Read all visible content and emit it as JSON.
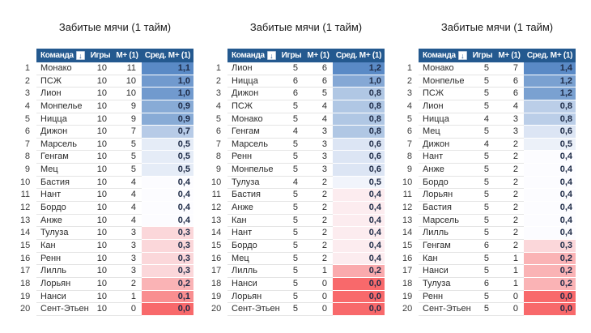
{
  "headers": {
    "team": "Команда",
    "games": "Игры",
    "m1": "М+ (1)",
    "avg": "Сред. М+ (1)"
  },
  "sort_icon": {
    "name": "sort-descending-icon",
    "glyph": "↓"
  },
  "colors": {
    "header_bg": "#24598F",
    "header_text": "#ffffff",
    "scale_max_blue": "#5A8AC6",
    "scale_mid_white": "#FCFCFF",
    "scale_min_red": "#F8696B",
    "row_border": "#e4e4e4"
  },
  "chart_data": [
    {
      "type": "table",
      "title": "Забитые мячи (1 тайм)",
      "columns": [
        "Команда",
        "Игры",
        "М+ (1)",
        "Сред. М+ (1)"
      ],
      "rows": [
        {
          "rank": 1,
          "team": "Монако",
          "games": 10,
          "m1": 11,
          "avg": "1,1"
        },
        {
          "rank": 2,
          "team": "ПСЖ",
          "games": 10,
          "m1": 10,
          "avg": "1,0"
        },
        {
          "rank": 3,
          "team": "Лион",
          "games": 10,
          "m1": 10,
          "avg": "1,0"
        },
        {
          "rank": 4,
          "team": "Монпелье",
          "games": 10,
          "m1": 9,
          "avg": "0,9"
        },
        {
          "rank": 5,
          "team": "Ницца",
          "games": 10,
          "m1": 9,
          "avg": "0,9"
        },
        {
          "rank": 6,
          "team": "Дижон",
          "games": 10,
          "m1": 7,
          "avg": "0,7"
        },
        {
          "rank": 7,
          "team": "Марсель",
          "games": 10,
          "m1": 5,
          "avg": "0,5"
        },
        {
          "rank": 8,
          "team": "Генгам",
          "games": 10,
          "m1": 5,
          "avg": "0,5"
        },
        {
          "rank": 9,
          "team": "Мец",
          "games": 10,
          "m1": 5,
          "avg": "0,5"
        },
        {
          "rank": 10,
          "team": "Бастия",
          "games": 10,
          "m1": 4,
          "avg": "0,4"
        },
        {
          "rank": 11,
          "team": "Нант",
          "games": 10,
          "m1": 4,
          "avg": "0,4"
        },
        {
          "rank": 12,
          "team": "Бордо",
          "games": 10,
          "m1": 4,
          "avg": "0,4"
        },
        {
          "rank": 13,
          "team": "Анже",
          "games": 10,
          "m1": 4,
          "avg": "0,4"
        },
        {
          "rank": 14,
          "team": "Тулуза",
          "games": 10,
          "m1": 3,
          "avg": "0,3"
        },
        {
          "rank": 15,
          "team": "Кан",
          "games": 10,
          "m1": 3,
          "avg": "0,3"
        },
        {
          "rank": 16,
          "team": "Ренн",
          "games": 10,
          "m1": 3,
          "avg": "0,3"
        },
        {
          "rank": 17,
          "team": "Лилль",
          "games": 10,
          "m1": 3,
          "avg": "0,3"
        },
        {
          "rank": 18,
          "team": "Лорьян",
          "games": 10,
          "m1": 2,
          "avg": "0,2"
        },
        {
          "rank": 19,
          "team": "Нанси",
          "games": 10,
          "m1": 1,
          "avg": "0,1"
        },
        {
          "rank": 20,
          "team": "Сент-Этьен",
          "games": 10,
          "m1": 0,
          "avg": "0,0"
        }
      ]
    },
    {
      "type": "table",
      "title": "Забитые мячи (1 тайм)",
      "columns": [
        "Команда",
        "Игры",
        "М+ (1)",
        "Сред. М+ (1)"
      ],
      "rows": [
        {
          "rank": 1,
          "team": "Лион",
          "games": 5,
          "m1": 6,
          "avg": "1,2"
        },
        {
          "rank": 2,
          "team": "Ницца",
          "games": 6,
          "m1": 6,
          "avg": "1,0"
        },
        {
          "rank": 3,
          "team": "Дижон",
          "games": 6,
          "m1": 5,
          "avg": "0,8"
        },
        {
          "rank": 4,
          "team": "ПСЖ",
          "games": 5,
          "m1": 4,
          "avg": "0,8"
        },
        {
          "rank": 5,
          "team": "Монако",
          "games": 5,
          "m1": 4,
          "avg": "0,8"
        },
        {
          "rank": 6,
          "team": "Генгам",
          "games": 4,
          "m1": 3,
          "avg": "0,8"
        },
        {
          "rank": 7,
          "team": "Марсель",
          "games": 5,
          "m1": 3,
          "avg": "0,6"
        },
        {
          "rank": 8,
          "team": "Ренн",
          "games": 5,
          "m1": 3,
          "avg": "0,6"
        },
        {
          "rank": 9,
          "team": "Монпелье",
          "games": 5,
          "m1": 3,
          "avg": "0,6"
        },
        {
          "rank": 10,
          "team": "Тулуза",
          "games": 4,
          "m1": 2,
          "avg": "0,5"
        },
        {
          "rank": 11,
          "team": "Бастия",
          "games": 5,
          "m1": 2,
          "avg": "0,4"
        },
        {
          "rank": 12,
          "team": "Анже",
          "games": 5,
          "m1": 2,
          "avg": "0,4"
        },
        {
          "rank": 13,
          "team": "Кан",
          "games": 5,
          "m1": 2,
          "avg": "0,4"
        },
        {
          "rank": 14,
          "team": "Нант",
          "games": 5,
          "m1": 2,
          "avg": "0,4"
        },
        {
          "rank": 15,
          "team": "Бордо",
          "games": 5,
          "m1": 2,
          "avg": "0,4"
        },
        {
          "rank": 16,
          "team": "Мец",
          "games": 5,
          "m1": 2,
          "avg": "0,4"
        },
        {
          "rank": 17,
          "team": "Лилль",
          "games": 5,
          "m1": 1,
          "avg": "0,2"
        },
        {
          "rank": 18,
          "team": "Нанси",
          "games": 5,
          "m1": 0,
          "avg": "0,0"
        },
        {
          "rank": 19,
          "team": "Лорьян",
          "games": 5,
          "m1": 0,
          "avg": "0,0"
        },
        {
          "rank": 20,
          "team": "Сент-Этьен",
          "games": 5,
          "m1": 0,
          "avg": "0,0"
        }
      ]
    },
    {
      "type": "table",
      "title": "Забитые мячи (1 тайм)",
      "columns": [
        "Команда",
        "Игры",
        "М+ (1)",
        "Сред. М+ (1)"
      ],
      "rows": [
        {
          "rank": 1,
          "team": "Монако",
          "games": 5,
          "m1": 7,
          "avg": "1,4"
        },
        {
          "rank": 2,
          "team": "Монпелье",
          "games": 5,
          "m1": 6,
          "avg": "1,2"
        },
        {
          "rank": 3,
          "team": "ПСЖ",
          "games": 5,
          "m1": 6,
          "avg": "1,2"
        },
        {
          "rank": 4,
          "team": "Лион",
          "games": 5,
          "m1": 4,
          "avg": "0,8"
        },
        {
          "rank": 5,
          "team": "Ницца",
          "games": 4,
          "m1": 3,
          "avg": "0,8"
        },
        {
          "rank": 6,
          "team": "Мец",
          "games": 5,
          "m1": 3,
          "avg": "0,6"
        },
        {
          "rank": 7,
          "team": "Дижон",
          "games": 4,
          "m1": 2,
          "avg": "0,5"
        },
        {
          "rank": 8,
          "team": "Нант",
          "games": 5,
          "m1": 2,
          "avg": "0,4"
        },
        {
          "rank": 9,
          "team": "Анже",
          "games": 5,
          "m1": 2,
          "avg": "0,4"
        },
        {
          "rank": 10,
          "team": "Бордо",
          "games": 5,
          "m1": 2,
          "avg": "0,4"
        },
        {
          "rank": 11,
          "team": "Лорьян",
          "games": 5,
          "m1": 2,
          "avg": "0,4"
        },
        {
          "rank": 12,
          "team": "Бастия",
          "games": 5,
          "m1": 2,
          "avg": "0,4"
        },
        {
          "rank": 13,
          "team": "Марсель",
          "games": 5,
          "m1": 2,
          "avg": "0,4"
        },
        {
          "rank": 14,
          "team": "Лилль",
          "games": 5,
          "m1": 2,
          "avg": "0,4"
        },
        {
          "rank": 15,
          "team": "Генгам",
          "games": 6,
          "m1": 2,
          "avg": "0,3"
        },
        {
          "rank": 16,
          "team": "Кан",
          "games": 5,
          "m1": 1,
          "avg": "0,2"
        },
        {
          "rank": 17,
          "team": "Нанси",
          "games": 5,
          "m1": 1,
          "avg": "0,2"
        },
        {
          "rank": 18,
          "team": "Тулуза",
          "games": 6,
          "m1": 1,
          "avg": "0,2"
        },
        {
          "rank": 19,
          "team": "Ренн",
          "games": 5,
          "m1": 0,
          "avg": "0,0"
        },
        {
          "rank": 20,
          "team": "Сент-Этьен",
          "games": 5,
          "m1": 0,
          "avg": "0,0"
        }
      ]
    }
  ]
}
